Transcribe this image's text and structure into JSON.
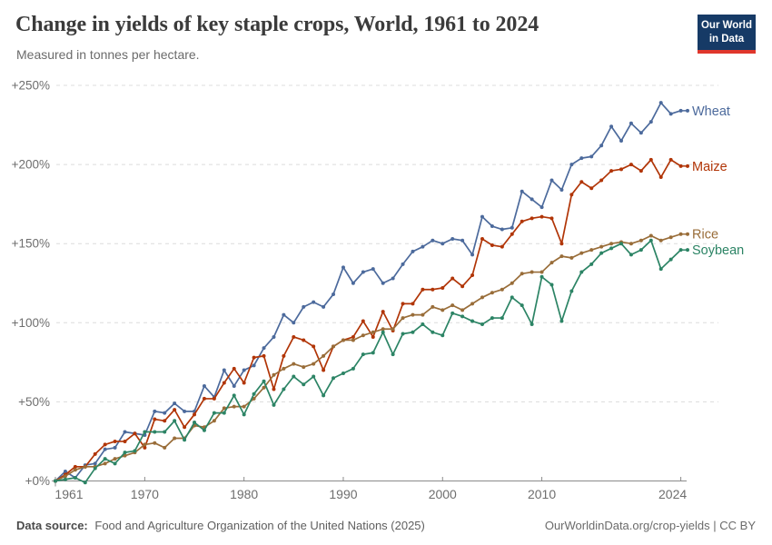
{
  "header": {
    "title": "Change in yields of key staple crops, World, 1961 to 2024",
    "subtitle": "Measured in tonnes per hectare.",
    "logo": {
      "line1": "Our World",
      "line2": "in Data",
      "bg_color": "#163A66",
      "accent_color": "#E0362C"
    }
  },
  "footer": {
    "source_label": "Data source:",
    "source_text": "Food and Agriculture Organization of the United Nations (2025)",
    "credit": "OurWorldinData.org/crop-yields | CC BY"
  },
  "chart_data": {
    "type": "line",
    "title": "Change in yields of key staple crops, World, 1961 to 2024",
    "subtitle": "Measured in tonnes per hectare.",
    "unit": "% change since 1961",
    "xlabel": "",
    "ylabel": "",
    "grid": "horizontal dashed",
    "legend_position": "right-end-labels",
    "xlim": [
      1961,
      2024
    ],
    "ylim": [
      0,
      260
    ],
    "xticks": [
      {
        "value": 1961,
        "label": "1961"
      },
      {
        "value": 1970,
        "label": "1970"
      },
      {
        "value": 1980,
        "label": "1980"
      },
      {
        "value": 1990,
        "label": "1990"
      },
      {
        "value": 2000,
        "label": "2000"
      },
      {
        "value": 2010,
        "label": "2010"
      },
      {
        "value": 2024,
        "label": "2024"
      }
    ],
    "yticks": [
      {
        "value": 0,
        "label": "+0%"
      },
      {
        "value": 50,
        "label": "+50%"
      },
      {
        "value": 100,
        "label": "+100%"
      },
      {
        "value": 150,
        "label": "+150%"
      },
      {
        "value": 200,
        "label": "+200%"
      },
      {
        "value": 250,
        "label": "+250%"
      }
    ],
    "years": [
      1961,
      1962,
      1963,
      1964,
      1965,
      1966,
      1967,
      1968,
      1969,
      1970,
      1971,
      1972,
      1973,
      1974,
      1975,
      1976,
      1977,
      1978,
      1979,
      1980,
      1981,
      1982,
      1983,
      1984,
      1985,
      1986,
      1987,
      1988,
      1989,
      1990,
      1991,
      1992,
      1993,
      1994,
      1995,
      1996,
      1997,
      1998,
      1999,
      2000,
      2001,
      2002,
      2003,
      2004,
      2005,
      2006,
      2007,
      2008,
      2009,
      2010,
      2011,
      2012,
      2013,
      2014,
      2015,
      2016,
      2017,
      2018,
      2019,
      2020,
      2021,
      2022,
      2023,
      2024
    ],
    "series": [
      {
        "name": "Wheat",
        "color": "#4C6A9C",
        "values": [
          0,
          6,
          2,
          10,
          11,
          20,
          21,
          31,
          30,
          29,
          44,
          43,
          49,
          44,
          44,
          60,
          53,
          70,
          60,
          70,
          73,
          84,
          91,
          105,
          100,
          110,
          113,
          110,
          118,
          135,
          125,
          132,
          134,
          125,
          128,
          137,
          145,
          148,
          152,
          150,
          153,
          152,
          143,
          167,
          161,
          159,
          160,
          183,
          178,
          173,
          190,
          184,
          200,
          204,
          205,
          212,
          224,
          215,
          226,
          220,
          227,
          239,
          232,
          234
        ]
      },
      {
        "name": "Maize",
        "color": "#B13507",
        "values": [
          0,
          4,
          9,
          9,
          17,
          23,
          25,
          25,
          30,
          21,
          39,
          38,
          45,
          34,
          42,
          52,
          52,
          62,
          71,
          62,
          78,
          79,
          58,
          79,
          91,
          89,
          85,
          70,
          85,
          89,
          91,
          101,
          91,
          107,
          95,
          112,
          112,
          121,
          121,
          122,
          128,
          123,
          130,
          153,
          149,
          148,
          156,
          164,
          166,
          167,
          166,
          150,
          181,
          189,
          185,
          190,
          196,
          197,
          200,
          196,
          203,
          192,
          203,
          199
        ]
      },
      {
        "name": "Rice",
        "color": "#996D39",
        "values": [
          0,
          3,
          7,
          9,
          9,
          11,
          14,
          16,
          18,
          23,
          24,
          21,
          27,
          27,
          35,
          34,
          38,
          46,
          47,
          47,
          52,
          59,
          67,
          71,
          74,
          72,
          74,
          79,
          85,
          89,
          89,
          92,
          94,
          96,
          96,
          103,
          105,
          105,
          110,
          108,
          111,
          108,
          112,
          116,
          119,
          121,
          125,
          131,
          132,
          132,
          138,
          142,
          141,
          144,
          146,
          148,
          150,
          151,
          150,
          152,
          155,
          152,
          154,
          156
        ]
      },
      {
        "name": "Soybean",
        "color": "#2C8465",
        "values": [
          0,
          1,
          2,
          -1,
          8,
          14,
          11,
          18,
          19,
          31,
          31,
          31,
          38,
          26,
          37,
          32,
          43,
          43,
          54,
          42,
          55,
          63,
          48,
          58,
          66,
          61,
          66,
          54,
          65,
          68,
          71,
          80,
          81,
          94,
          80,
          93,
          94,
          99,
          94,
          92,
          106,
          104,
          101,
          99,
          103,
          103,
          116,
          111,
          99,
          129,
          124,
          101,
          120,
          132,
          137,
          144,
          147,
          150,
          143,
          146,
          152,
          134,
          140,
          146
        ]
      }
    ]
  }
}
